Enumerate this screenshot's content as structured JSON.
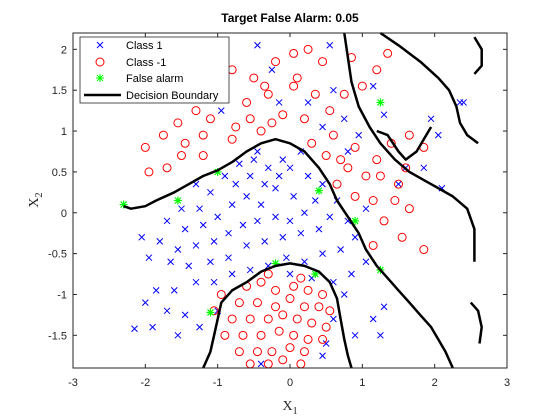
{
  "chart_data": {
    "type": "scatter",
    "title": "Target False Alarm: 0.05",
    "xlabel": "X",
    "xlabel_sub": "1",
    "ylabel": "X",
    "ylabel_sub": "2",
    "xlim": [
      -3,
      3
    ],
    "ylim": [
      -1.9,
      2.2
    ],
    "xticks": [
      -3,
      -2,
      -1,
      0,
      1,
      2,
      3
    ],
    "xtick_labels": [
      "-3",
      "-2",
      "-1",
      "0",
      "1",
      "2",
      "3"
    ],
    "yticks": [
      -1.5,
      -1,
      -0.5,
      0,
      0.5,
      1,
      1.5,
      2
    ],
    "ytick_labels": [
      "-1.5",
      "-1",
      "-0.5",
      "0",
      "0.5",
      "1",
      "1.5",
      "2"
    ],
    "grid": false,
    "legend_position": "top-left",
    "legend": [
      {
        "label": "Class 1",
        "marker": "x",
        "color": "#0000ff"
      },
      {
        "label": "Class -1",
        "marker": "o",
        "color": "#ff0000"
      },
      {
        "label": "False alarm",
        "marker": "*",
        "color": "#00ff00"
      },
      {
        "label": "Decision Boundary",
        "marker": "line",
        "color": "#000000"
      }
    ],
    "series": [
      {
        "name": "Class 1",
        "marker": "x",
        "color": "#0000ff",
        "points": [
          [
            -1.9,
            1.6
          ],
          [
            -1.45,
            1.5
          ],
          [
            -1.0,
            1.85
          ],
          [
            -1.2,
            1.6
          ],
          [
            -0.95,
            1.25
          ],
          [
            -0.45,
            2.05
          ],
          [
            -0.25,
            1.75
          ],
          [
            -0.15,
            1.35
          ],
          [
            0.25,
            1.35
          ],
          [
            0.45,
            1.05
          ],
          [
            0.55,
            2.05
          ],
          [
            0.6,
            1.5
          ],
          [
            0.75,
            1.15
          ],
          [
            0.8,
            0.75
          ],
          [
            0.95,
            0.95
          ],
          [
            1.15,
            1.55
          ],
          [
            1.3,
            1.2
          ],
          [
            1.5,
            0.35
          ],
          [
            1.6,
            0.55
          ],
          [
            1.95,
            1.15
          ],
          [
            2.05,
            0.95
          ],
          [
            2.35,
            1.35
          ],
          [
            2.4,
            1.35
          ],
          [
            2.1,
            0.3
          ],
          [
            1.85,
            0.55
          ],
          [
            1.05,
            0.05
          ],
          [
            -0.45,
            0.75
          ],
          [
            -0.3,
            0.55
          ],
          [
            -0.1,
            0.65
          ],
          [
            0.0,
            0.55
          ],
          [
            -0.35,
            0.35
          ],
          [
            -0.55,
            0.45
          ],
          [
            -0.75,
            0.35
          ],
          [
            -0.9,
            0.45
          ],
          [
            -1.1,
            0.25
          ],
          [
            -1.3,
            0.35
          ],
          [
            -1.25,
            0.05
          ],
          [
            -1.5,
            0.05
          ],
          [
            -1.7,
            -0.1
          ],
          [
            -1.45,
            -0.2
          ],
          [
            -1.2,
            -0.15
          ],
          [
            -1.0,
            -0.05
          ],
          [
            -0.8,
            0.1
          ],
          [
            -0.6,
            0.2
          ],
          [
            -0.4,
            0.1
          ],
          [
            -0.2,
            0.3
          ],
          [
            0.05,
            0.2
          ],
          [
            0.25,
            0.45
          ],
          [
            0.35,
            0.15
          ],
          [
            0.2,
            0.0
          ],
          [
            0.0,
            -0.1
          ],
          [
            -0.2,
            -0.05
          ],
          [
            -0.45,
            -0.1
          ],
          [
            -0.65,
            -0.15
          ],
          [
            -0.85,
            -0.25
          ],
          [
            -1.05,
            -0.35
          ],
          [
            -1.3,
            -0.4
          ],
          [
            -1.55,
            -0.45
          ],
          [
            -1.8,
            -0.35
          ],
          [
            -2.05,
            -0.3
          ],
          [
            -1.95,
            -0.55
          ],
          [
            -1.65,
            -0.6
          ],
          [
            -1.4,
            -0.65
          ],
          [
            -1.1,
            -0.6
          ],
          [
            -0.85,
            -0.55
          ],
          [
            -0.6,
            -0.4
          ],
          [
            -0.35,
            -0.35
          ],
          [
            -0.1,
            -0.3
          ],
          [
            0.15,
            -0.25
          ],
          [
            0.4,
            -0.2
          ],
          [
            0.55,
            -0.05
          ],
          [
            0.65,
            0.15
          ],
          [
            0.8,
            -0.1
          ],
          [
            0.9,
            -0.3
          ],
          [
            0.7,
            -0.45
          ],
          [
            0.45,
            -0.5
          ],
          [
            0.2,
            -0.6
          ],
          [
            -0.05,
            -0.55
          ],
          [
            -0.3,
            -0.65
          ],
          [
            -0.55,
            -0.7
          ],
          [
            -0.8,
            -0.75
          ],
          [
            -1.05,
            -0.85
          ],
          [
            -1.3,
            -0.85
          ],
          [
            -1.6,
            -0.95
          ],
          [
            -1.85,
            -0.95
          ],
          [
            -2.0,
            -1.1
          ],
          [
            -1.7,
            -1.2
          ],
          [
            -1.45,
            -1.25
          ],
          [
            -1.9,
            -1.4
          ],
          [
            -1.55,
            -1.5
          ],
          [
            -1.25,
            -1.4
          ],
          [
            -2.15,
            -1.42
          ],
          [
            -1.0,
            -1.2
          ],
          [
            0.0,
            -0.75
          ],
          [
            0.3,
            -0.8
          ],
          [
            0.6,
            -0.85
          ],
          [
            0.85,
            -0.75
          ],
          [
            1.05,
            -0.6
          ],
          [
            0.75,
            -1.0
          ],
          [
            0.6,
            -1.3
          ],
          [
            0.9,
            -1.5
          ],
          [
            1.15,
            -1.3
          ],
          [
            1.25,
            -1.5
          ],
          [
            0.5,
            -1.6
          ],
          [
            0.45,
            -1.75
          ],
          [
            -0.4,
            -1.85
          ],
          [
            1.3,
            -1.15
          ],
          [
            -0.5,
            0.65
          ],
          [
            -0.7,
            0.6
          ],
          [
            -0.15,
            0.45
          ],
          [
            0.15,
            0.75
          ],
          [
            0.45,
            0.35
          ]
        ]
      },
      {
        "name": "Class -1",
        "marker": "o",
        "color": "#ff0000",
        "points": [
          [
            -1.6,
            2.05
          ],
          [
            -1.3,
            1.9
          ],
          [
            -0.8,
            1.75
          ],
          [
            -0.5,
            1.65
          ],
          [
            -0.2,
            1.85
          ],
          [
            0.05,
            1.95
          ],
          [
            0.25,
            2.0
          ],
          [
            0.45,
            1.85
          ],
          [
            0.05,
            1.55
          ],
          [
            -0.3,
            1.45
          ],
          [
            -0.6,
            1.35
          ],
          [
            -0.95,
            1.45
          ],
          [
            -1.3,
            1.25
          ],
          [
            -1.55,
            1.1
          ],
          [
            -1.75,
            0.95
          ],
          [
            -2.0,
            0.8
          ],
          [
            -1.45,
            0.85
          ],
          [
            -1.2,
            0.7
          ],
          [
            -0.75,
            1.05
          ],
          [
            -0.4,
            1.0
          ],
          [
            -0.1,
            1.2
          ],
          [
            0.2,
            1.15
          ],
          [
            0.55,
            1.25
          ],
          [
            0.75,
            1.45
          ],
          [
            1.0,
            1.55
          ],
          [
            1.2,
            1.75
          ],
          [
            1.35,
            1.95
          ],
          [
            0.85,
            1.9
          ],
          [
            0.6,
            0.95
          ],
          [
            0.9,
            0.8
          ],
          [
            1.2,
            0.65
          ],
          [
            1.05,
            0.45
          ],
          [
            0.8,
            0.55
          ],
          [
            0.65,
            0.35
          ],
          [
            0.9,
            0.2
          ],
          [
            1.15,
            0.15
          ],
          [
            1.45,
            0.15
          ],
          [
            1.65,
            0.05
          ],
          [
            1.3,
            -0.1
          ],
          [
            1.55,
            -0.3
          ],
          [
            1.85,
            -0.45
          ],
          [
            1.15,
            -0.4
          ],
          [
            1.6,
            0.55
          ],
          [
            1.4,
            0.85
          ],
          [
            1.65,
            0.95
          ],
          [
            1.85,
            0.8
          ],
          [
            -1.7,
            0.55
          ],
          [
            -1.95,
            0.5
          ],
          [
            -1.5,
            0.7
          ],
          [
            -1.2,
            0.95
          ],
          [
            -1.1,
            1.15
          ],
          [
            -0.8,
            0.9
          ],
          [
            -0.55,
            1.15
          ],
          [
            -0.25,
            1.1
          ],
          [
            0.3,
            0.85
          ],
          [
            0.5,
            0.7
          ],
          [
            0.7,
            0.65
          ],
          [
            1.5,
            0.35
          ],
          [
            1.25,
            0.45
          ],
          [
            0.35,
            1.45
          ],
          [
            -0.35,
            1.55
          ],
          [
            0.1,
            1.65
          ],
          [
            -0.6,
            -0.9
          ],
          [
            -0.4,
            -0.85
          ],
          [
            -0.2,
            -0.95
          ],
          [
            0.05,
            -0.9
          ],
          [
            0.25,
            -0.95
          ],
          [
            0.45,
            -1.0
          ],
          [
            -0.7,
            -1.1
          ],
          [
            -0.45,
            -1.1
          ],
          [
            -0.2,
            -1.15
          ],
          [
            0.0,
            -1.05
          ],
          [
            0.2,
            -1.15
          ],
          [
            0.4,
            -1.15
          ],
          [
            0.55,
            -1.2
          ],
          [
            -0.8,
            -1.3
          ],
          [
            -0.55,
            -1.3
          ],
          [
            -0.3,
            -1.3
          ],
          [
            -0.1,
            -1.25
          ],
          [
            0.1,
            -1.3
          ],
          [
            0.3,
            -1.35
          ],
          [
            0.5,
            -1.4
          ],
          [
            -0.9,
            -1.5
          ],
          [
            -0.65,
            -1.5
          ],
          [
            -0.4,
            -1.5
          ],
          [
            -0.15,
            -1.45
          ],
          [
            0.05,
            -1.5
          ],
          [
            0.25,
            -1.55
          ],
          [
            0.45,
            -1.55
          ],
          [
            -0.7,
            -1.7
          ],
          [
            -0.45,
            -1.7
          ],
          [
            -0.25,
            -1.7
          ],
          [
            0.0,
            -1.65
          ],
          [
            0.2,
            -1.7
          ],
          [
            -0.55,
            -1.85
          ],
          [
            -0.3,
            -1.85
          ],
          [
            -0.1,
            -1.8
          ],
          [
            0.15,
            -1.85
          ],
          [
            -1.05,
            -1.2
          ],
          [
            -0.95,
            -1.0
          ],
          [
            -0.3,
            -0.75
          ],
          [
            0.15,
            -0.8
          ]
        ]
      },
      {
        "name": "False alarm",
        "marker": "*",
        "color": "#00ff00",
        "points": [
          [
            -2.3,
            0.1
          ],
          [
            -1.55,
            0.15
          ],
          [
            -1.0,
            0.5
          ],
          [
            0.4,
            0.27
          ],
          [
            0.9,
            -0.1
          ],
          [
            1.25,
            1.35
          ],
          [
            1.25,
            -0.7
          ],
          [
            -1.1,
            -1.22
          ],
          [
            -0.2,
            -0.62
          ],
          [
            0.35,
            -0.75
          ]
        ]
      }
    ],
    "decision_boundary": [
      [
        [
          -2.3,
          0.08
        ],
        [
          -2.2,
          0.05
        ],
        [
          -2.0,
          0.08
        ],
        [
          -1.85,
          0.15
        ],
        [
          -1.6,
          0.25
        ],
        [
          -1.4,
          0.35
        ],
        [
          -1.2,
          0.45
        ],
        [
          -1.0,
          0.52
        ],
        [
          -0.8,
          0.62
        ],
        [
          -0.6,
          0.75
        ],
        [
          -0.4,
          0.85
        ],
        [
          -0.2,
          0.9
        ],
        [
          0.0,
          0.85
        ],
        [
          0.2,
          0.75
        ],
        [
          0.4,
          0.55
        ],
        [
          0.55,
          0.35
        ],
        [
          0.65,
          0.15
        ],
        [
          0.8,
          -0.05
        ],
        [
          0.95,
          -0.25
        ],
        [
          1.05,
          -0.45
        ],
        [
          1.2,
          -0.65
        ],
        [
          1.35,
          -0.8
        ],
        [
          1.5,
          -0.95
        ],
        [
          1.65,
          -1.1
        ],
        [
          1.8,
          -1.25
        ],
        [
          1.95,
          -1.4
        ],
        [
          2.05,
          -1.55
        ],
        [
          2.15,
          -1.7
        ],
        [
          2.25,
          -1.9
        ]
      ],
      [
        [
          -1.2,
          -1.9
        ],
        [
          -1.1,
          -1.7
        ],
        [
          -1.05,
          -1.5
        ],
        [
          -1.0,
          -1.3
        ],
        [
          -0.95,
          -1.1
        ],
        [
          -0.8,
          -0.95
        ],
        [
          -0.6,
          -0.85
        ],
        [
          -0.4,
          -0.72
        ],
        [
          -0.2,
          -0.65
        ],
        [
          0.0,
          -0.62
        ],
        [
          0.2,
          -0.65
        ],
        [
          0.4,
          -0.72
        ],
        [
          0.55,
          -0.85
        ],
        [
          0.65,
          -1.05
        ],
        [
          0.7,
          -1.3
        ],
        [
          0.75,
          -1.55
        ],
        [
          0.8,
          -1.75
        ],
        [
          0.85,
          -1.9
        ]
      ],
      [
        [
          0.75,
          2.2
        ],
        [
          0.8,
          1.9
        ],
        [
          0.85,
          1.6
        ],
        [
          0.95,
          1.3
        ],
        [
          1.1,
          1.05
        ],
        [
          1.25,
          0.85
        ],
        [
          1.45,
          0.65
        ],
        [
          1.65,
          0.5
        ],
        [
          1.85,
          0.4
        ],
        [
          2.05,
          0.3
        ],
        [
          2.25,
          0.2
        ],
        [
          2.45,
          0.05
        ],
        [
          2.55,
          -0.2
        ],
        [
          2.55,
          -0.6
        ]
      ],
      [
        [
          1.25,
          2.2
        ],
        [
          1.5,
          2.05
        ],
        [
          1.8,
          1.85
        ],
        [
          2.05,
          1.65
        ],
        [
          2.2,
          1.5
        ],
        [
          2.3,
          1.3
        ],
        [
          2.35,
          1.1
        ],
        [
          2.45,
          0.95
        ],
        [
          2.6,
          0.85
        ]
      ],
      [
        [
          1.2,
          1.0
        ],
        [
          1.35,
          0.95
        ],
        [
          1.5,
          0.75
        ],
        [
          1.6,
          0.65
        ],
        [
          1.75,
          0.75
        ],
        [
          1.85,
          0.9
        ],
        [
          1.95,
          1.05
        ]
      ],
      [
        [
          2.5,
          -1.1
        ],
        [
          2.6,
          -1.2
        ],
        [
          2.65,
          -1.4
        ],
        [
          2.62,
          -1.6
        ]
      ],
      [
        [
          2.55,
          1.7
        ],
        [
          2.65,
          1.8
        ],
        [
          2.65,
          2.0
        ],
        [
          2.55,
          2.15
        ]
      ]
    ]
  }
}
